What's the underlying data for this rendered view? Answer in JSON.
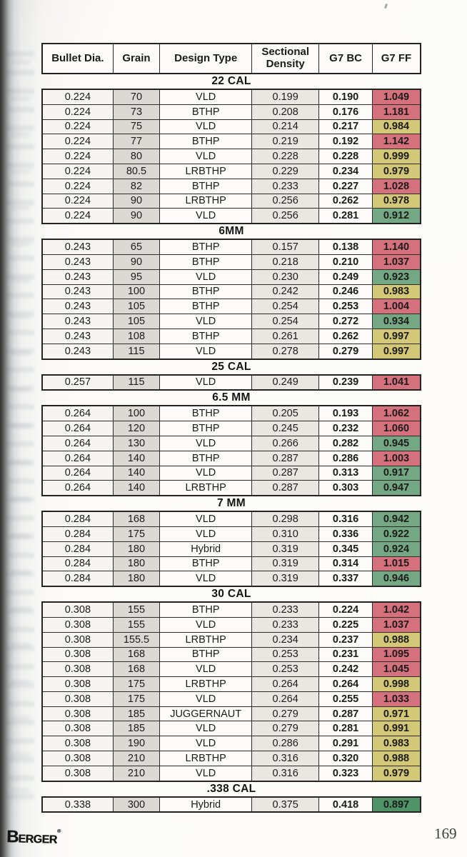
{
  "footer": {
    "brand_initial": "B",
    "brand_rest": "ERGER",
    "brand_mark": "®",
    "page_number": "169"
  },
  "colors": {
    "ff_red": "#d5707d",
    "ff_yellow": "#d2c878",
    "ff_green": "#74a884",
    "ff_deep_green": "#4f9467",
    "grain_col_bg": "#dcd9d5",
    "sd_col_bg": "#eae7e3"
  },
  "table": {
    "headers": [
      "Bullet Dia.",
      "Grain",
      "Design Type",
      "Sectional Density",
      "G7 BC",
      "G7 FF"
    ]
  },
  "sections": [
    {
      "label": "22 CAL",
      "rows": [
        [
          "0.224",
          "70",
          "VLD",
          "0.199",
          "0.190",
          "1.049",
          "red"
        ],
        [
          "0.224",
          "73",
          "BTHP",
          "0.208",
          "0.176",
          "1.181",
          "red"
        ],
        [
          "0.224",
          "75",
          "VLD",
          "0.214",
          "0.217",
          "0.984",
          "yellow"
        ],
        [
          "0.224",
          "77",
          "BTHP",
          "0.219",
          "0.192",
          "1.142",
          "red"
        ],
        [
          "0.224",
          "80",
          "VLD",
          "0.228",
          "0.228",
          "0.999",
          "yellow"
        ],
        [
          "0.224",
          "80.5",
          "LRBTHP",
          "0.229",
          "0.234",
          "0.979",
          "yellow"
        ],
        [
          "0.224",
          "82",
          "BTHP",
          "0.233",
          "0.227",
          "1.028",
          "red"
        ],
        [
          "0.224",
          "90",
          "LRBTHP",
          "0.256",
          "0.262",
          "0.978",
          "yellow"
        ],
        [
          "0.224",
          "90",
          "VLD",
          "0.256",
          "0.281",
          "0.912",
          "green"
        ]
      ]
    },
    {
      "label": "6MM",
      "rows": [
        [
          "0.243",
          "65",
          "BTHP",
          "0.157",
          "0.138",
          "1.140",
          "red"
        ],
        [
          "0.243",
          "90",
          "BTHP",
          "0.218",
          "0.210",
          "1.037",
          "red"
        ],
        [
          "0.243",
          "95",
          "VLD",
          "0.230",
          "0.249",
          "0.923",
          "green"
        ],
        [
          "0.243",
          "100",
          "BTHP",
          "0.242",
          "0.246",
          "0.983",
          "yellow"
        ],
        [
          "0.243",
          "105",
          "BTHP",
          "0.254",
          "0.253",
          "1.004",
          "red"
        ],
        [
          "0.243",
          "105",
          "VLD",
          "0.254",
          "0.272",
          "0.934",
          "green"
        ],
        [
          "0.243",
          "108",
          "BTHP",
          "0.261",
          "0.262",
          "0.997",
          "yellow"
        ],
        [
          "0.243",
          "115",
          "VLD",
          "0.278",
          "0.279",
          "0.997",
          "yellow"
        ]
      ]
    },
    {
      "label": "25 CAL",
      "rows": [
        [
          "0.257",
          "115",
          "VLD",
          "0.249",
          "0.239",
          "1.041",
          "red"
        ]
      ]
    },
    {
      "label": "6.5 MM",
      "rows": [
        [
          "0.264",
          "100",
          "BTHP",
          "0.205",
          "0.193",
          "1.062",
          "red"
        ],
        [
          "0.264",
          "120",
          "BTHP",
          "0.245",
          "0.232",
          "1.060",
          "red"
        ],
        [
          "0.264",
          "130",
          "VLD",
          "0.266",
          "0.282",
          "0.945",
          "green"
        ],
        [
          "0.264",
          "140",
          "BTHP",
          "0.287",
          "0.286",
          "1.003",
          "red"
        ],
        [
          "0.264",
          "140",
          "VLD",
          "0.287",
          "0.313",
          "0.917",
          "green"
        ],
        [
          "0.264",
          "140",
          "LRBTHP",
          "0.287",
          "0.303",
          "0.947",
          "green"
        ]
      ]
    },
    {
      "label": "7 MM",
      "rows": [
        [
          "0.284",
          "168",
          "VLD",
          "0.298",
          "0.316",
          "0.942",
          "green"
        ],
        [
          "0.284",
          "175",
          "VLD",
          "0.310",
          "0.336",
          "0.922",
          "green"
        ],
        [
          "0.284",
          "180",
          "Hybrid",
          "0.319",
          "0.345",
          "0.924",
          "green"
        ],
        [
          "0.284",
          "180",
          "BTHP",
          "0.319",
          "0.314",
          "1.015",
          "red"
        ],
        [
          "0.284",
          "180",
          "VLD",
          "0.319",
          "0.337",
          "0.946",
          "green"
        ]
      ]
    },
    {
      "label": "30 CAL",
      "rows": [
        [
          "0.308",
          "155",
          "BTHP",
          "0.233",
          "0.224",
          "1.042",
          "red"
        ],
        [
          "0.308",
          "155",
          "VLD",
          "0.233",
          "0.225",
          "1.037",
          "red"
        ],
        [
          "0.308",
          "155.5",
          "LRBTHP",
          "0.234",
          "0.237",
          "0.988",
          "yellow"
        ],
        [
          "0.308",
          "168",
          "BTHP",
          "0.253",
          "0.231",
          "1.095",
          "red"
        ],
        [
          "0.308",
          "168",
          "VLD",
          "0.253",
          "0.242",
          "1.045",
          "red"
        ],
        [
          "0.308",
          "175",
          "LRBTHP",
          "0.264",
          "0.264",
          "0.998",
          "yellow"
        ],
        [
          "0.308",
          "175",
          "VLD",
          "0.264",
          "0.255",
          "1.033",
          "red"
        ],
        [
          "0.308",
          "185",
          "JUGGERNAUT",
          "0.279",
          "0.287",
          "0.971",
          "yellow"
        ],
        [
          "0.308",
          "185",
          "VLD",
          "0.279",
          "0.281",
          "0.991",
          "yellow"
        ],
        [
          "0.308",
          "190",
          "VLD",
          "0.286",
          "0.291",
          "0.983",
          "yellow"
        ],
        [
          "0.308",
          "210",
          "LRBTHP",
          "0.316",
          "0.320",
          "0.988",
          "yellow"
        ],
        [
          "0.308",
          "210",
          "VLD",
          "0.316",
          "0.323",
          "0.979",
          "yellow"
        ]
      ]
    },
    {
      "label": ".338 CAL",
      "rows": [
        [
          "0.338",
          "300",
          "Hybrid",
          "0.375",
          "0.418",
          "0.897",
          "deep"
        ]
      ]
    }
  ]
}
